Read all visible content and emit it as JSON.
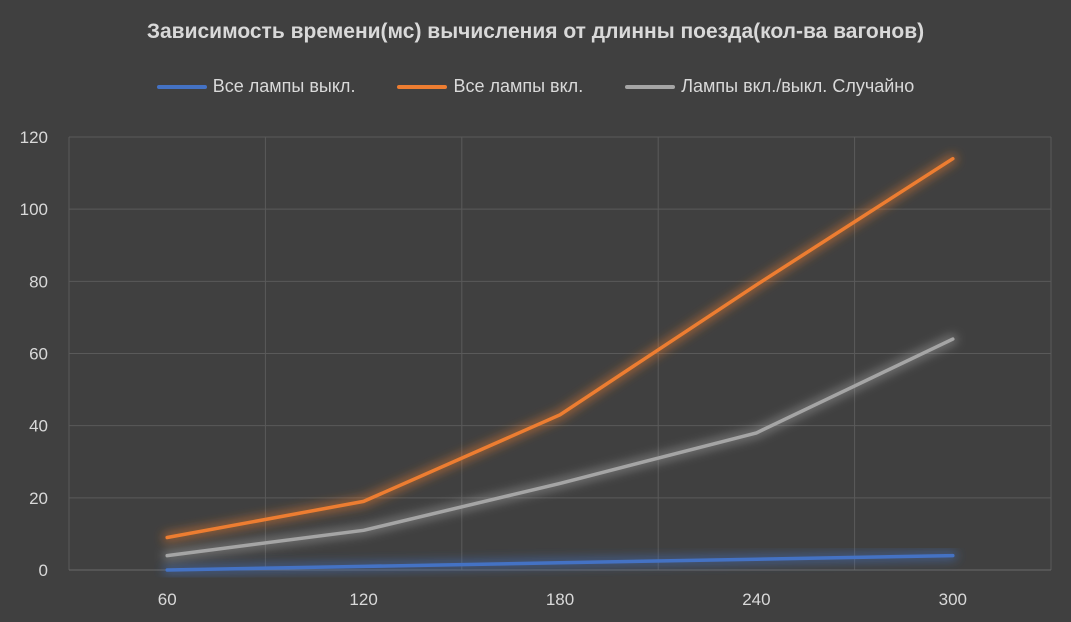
{
  "chart_data": {
    "type": "line",
    "title": "Зависимость времени(мс) вычисления от длинны поезда(кол-ва вагонов)",
    "xlabel": "",
    "ylabel": "",
    "categories": [
      "60",
      "120",
      "180",
      "240",
      "300"
    ],
    "ylim": [
      0,
      120
    ],
    "yticks": [
      "0",
      "20",
      "40",
      "60",
      "80",
      "100",
      "120"
    ],
    "grid": true,
    "legend_position": "top",
    "series": [
      {
        "name": "Все лампы выкл.",
        "color": "#4472c4",
        "values": [
          0,
          1,
          2,
          3,
          4
        ]
      },
      {
        "name": "Все лампы вкл.",
        "color": "#ed7d31",
        "values": [
          9,
          19,
          43,
          79,
          114
        ]
      },
      {
        "name": "Лампы вкл./выкл. Случайно",
        "color": "#a5a5a5",
        "values": [
          4,
          11,
          24,
          38,
          64
        ]
      }
    ]
  }
}
